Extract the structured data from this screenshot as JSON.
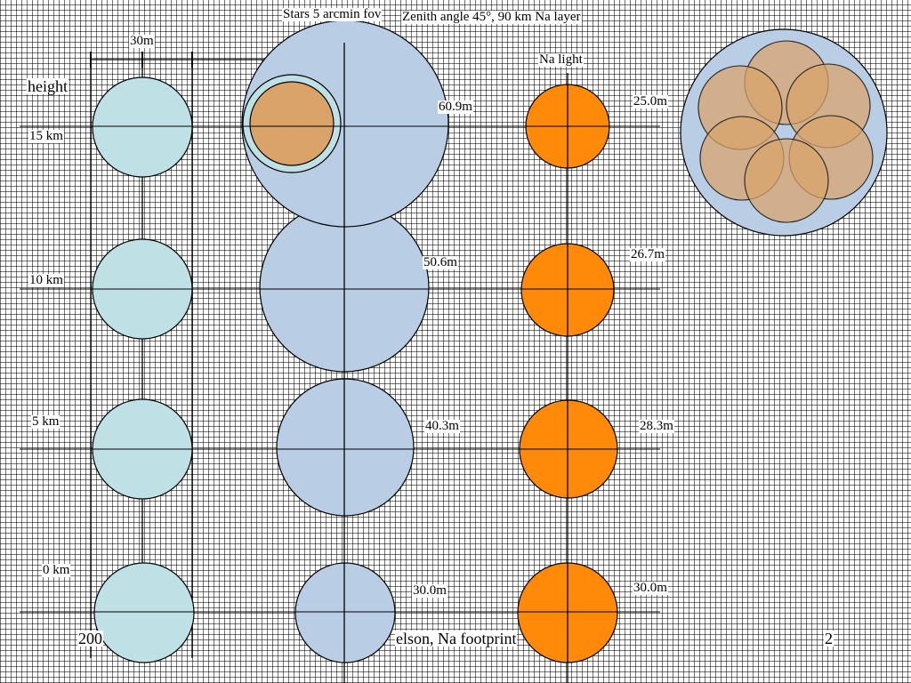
{
  "slide": {
    "title_left": "Stars 5 arcmin fov",
    "title_right": "Zenith angle 45°, 90 km Na layer",
    "scale_label": "30m",
    "axis_label": "height",
    "na_label": "Na light",
    "footer_left": "200",
    "footer_center": "elson, Na footprint",
    "page_number": "2"
  },
  "diagram_data": {
    "heights": [
      {
        "height": "15 km",
        "star_footprint": "60.9m",
        "na_footprint": "25.0m"
      },
      {
        "height": "10 km",
        "star_footprint": "50.6m",
        "na_footprint": "26.7m"
      },
      {
        "height": "5 km",
        "star_footprint": "40.3m",
        "na_footprint": "28.3m"
      },
      {
        "height": "0 km",
        "star_footprint": "30.0m",
        "na_footprint": "30.0m"
      }
    ],
    "colors": {
      "aperture": "#bfe1e6",
      "star_field": "#b9cde4",
      "na_light": "#ff8a0a",
      "overlap_footprint": "#d9a36a"
    }
  }
}
